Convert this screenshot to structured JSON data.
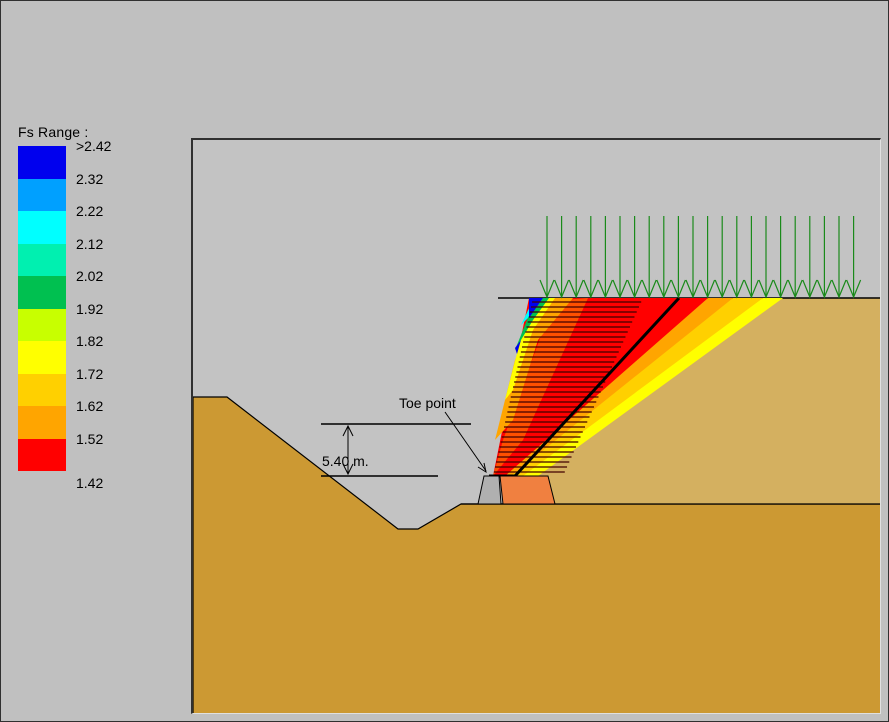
{
  "legend": {
    "title": "Fs Range :",
    "items": [
      {
        "label": ">2.42",
        "color": "#0000ee"
      },
      {
        "label": "2.32",
        "color": "#00a0ff"
      },
      {
        "label": "2.22",
        "color": "#00ffff"
      },
      {
        "label": "2.12",
        "color": "#00f0b0"
      },
      {
        "label": "2.02",
        "color": "#00c050"
      },
      {
        "label": "1.92",
        "color": "#c8ff00"
      },
      {
        "label": "1.82",
        "color": "#ffff00"
      },
      {
        "label": "1.72",
        "color": "#ffd000"
      },
      {
        "label": "1.62",
        "color": "#ffa500"
      },
      {
        "label": "1.52",
        "color": "#ff0000"
      }
    ],
    "last_label": "1.42"
  },
  "diagram": {
    "toe_label": "Toe point",
    "dimension_label": "5.40 m.",
    "colors": {
      "soil_lower": "#cc9933",
      "soil_upper": "#cc9930",
      "backfill": "#d4b060",
      "wall": "#f08040",
      "load_arrows": "#1a8a1a"
    }
  }
}
